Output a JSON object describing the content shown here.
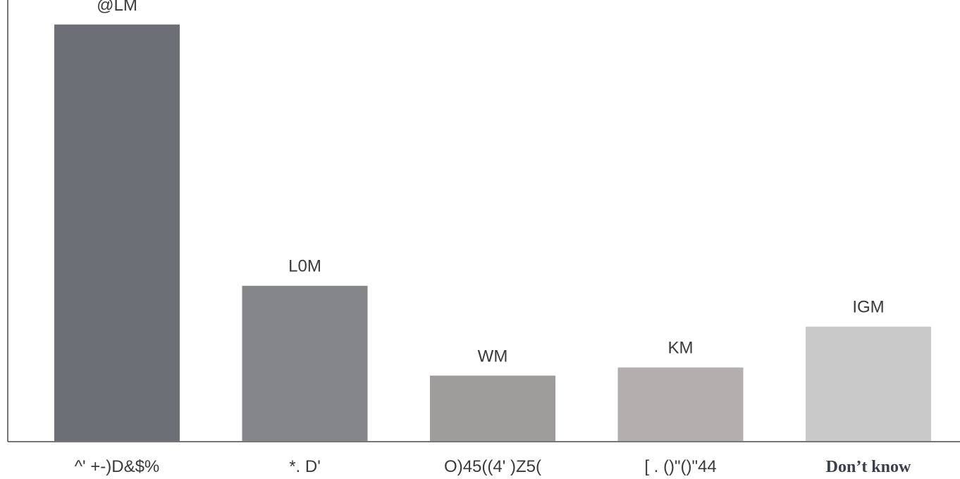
{
  "chart_data": {
    "type": "bar",
    "title": "",
    "xlabel": "",
    "ylabel": "",
    "categories": [
      "^' +-)D&$%",
      "*. D'",
      "O)45((4' )Z5(",
      "[ . ()\"()\"44",
      "Don’t know"
    ],
    "values": [
      51,
      19,
      8,
      9,
      14
    ],
    "value_labels": [
      "@LM",
      "L0M",
      "WM",
      "KM",
      "IGM"
    ],
    "bar_colors": [
      "#6d6f76",
      "#85868a",
      "#9f9c9c",
      "#b3afaf",
      "#c9c9c9"
    ],
    "ylim": [
      0,
      54
    ],
    "grid": false,
    "legend": "none"
  }
}
